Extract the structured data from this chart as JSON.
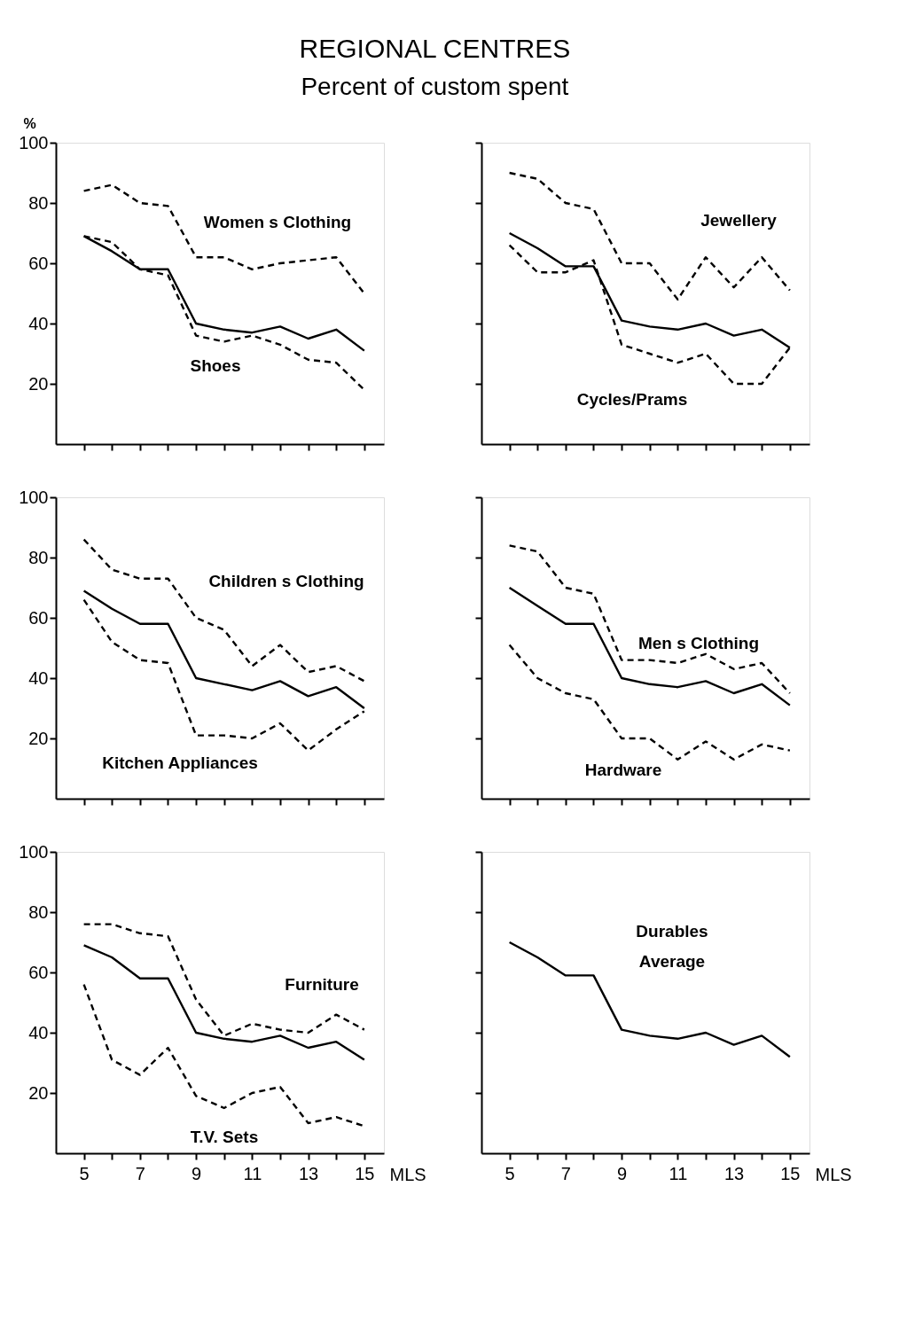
{
  "chart_data": [
    {
      "type": "line",
      "title": "REGIONAL CENTRES",
      "subtitle": "Percent of custom spent",
      "ylabel": "%",
      "x": [
        5,
        6,
        7,
        8,
        9,
        10,
        11,
        12,
        13,
        14,
        15
      ],
      "xlim": [
        4,
        15.7
      ],
      "ylim": [
        0,
        100
      ],
      "yticks": [
        20,
        40,
        60,
        80,
        100
      ],
      "xticks": [
        5,
        {
          "value": 6,
          "label": null
        },
        7,
        {
          "value": 8,
          "label": null
        },
        9,
        {
          "value": 10,
          "label": null
        },
        11,
        {
          "value": 12,
          "label": null
        },
        13,
        {
          "value": 14,
          "label": null
        },
        15
      ],
      "tick_labels": "y",
      "grid": false,
      "series": [
        {
          "name": "Women s Clothing",
          "color": "#000000",
          "line_style": "dashed",
          "values": [
            84,
            86,
            80,
            79,
            62,
            62,
            58,
            60,
            61,
            62,
            50
          ]
        },
        {
          "color": "#000000",
          "line_style": "solid",
          "values": [
            69,
            64,
            58,
            58,
            40,
            38,
            37,
            39,
            35,
            38,
            31
          ]
        },
        {
          "name": "Shoes",
          "color": "#000000",
          "line_style": "dashed",
          "values": [
            69,
            67,
            58,
            56,
            36,
            34,
            36,
            33,
            28,
            27,
            18
          ]
        }
      ]
    },
    {
      "type": "line",
      "x": [
        5,
        6,
        7,
        8,
        9,
        10,
        11,
        12,
        13,
        14,
        15
      ],
      "xlim": [
        4,
        15.7
      ],
      "ylim": [
        0,
        100
      ],
      "yticks": [
        20,
        40,
        60,
        80,
        100
      ],
      "xticks": [
        5,
        {
          "value": 6,
          "label": null
        },
        7,
        {
          "value": 8,
          "label": null
        },
        9,
        {
          "value": 10,
          "label": null
        },
        11,
        {
          "value": 12,
          "label": null
        },
        13,
        {
          "value": 14,
          "label": null
        },
        15
      ],
      "tick_labels": false,
      "grid": false,
      "series": [
        {
          "name": "Jewellery",
          "color": "#000000",
          "line_style": "dashed",
          "values": [
            90,
            88,
            80,
            78,
            60,
            60,
            48,
            62,
            52,
            62,
            51
          ]
        },
        {
          "color": "#000000",
          "line_style": "solid",
          "values": [
            70,
            65,
            59,
            59,
            41,
            39,
            38,
            40,
            36,
            38,
            32
          ]
        },
        {
          "name": "Cycles/Prams",
          "color": "#000000",
          "line_style": "dashed",
          "values": [
            66,
            57,
            57,
            61,
            33,
            30,
            27,
            30,
            20,
            20,
            32
          ]
        }
      ]
    },
    {
      "type": "line",
      "x": [
        5,
        6,
        7,
        8,
        9,
        10,
        11,
        12,
        13,
        14,
        15
      ],
      "xlim": [
        4,
        15.7
      ],
      "ylim": [
        0,
        100
      ],
      "yticks": [
        20,
        40,
        60,
        80,
        100
      ],
      "xticks": [
        5,
        {
          "value": 6,
          "label": null
        },
        7,
        {
          "value": 8,
          "label": null
        },
        9,
        {
          "value": 10,
          "label": null
        },
        11,
        {
          "value": 12,
          "label": null
        },
        13,
        {
          "value": 14,
          "label": null
        },
        15
      ],
      "tick_labels": "y",
      "grid": false,
      "series": [
        {
          "name": "Children s Clothing",
          "color": "#000000",
          "line_style": "dashed",
          "values": [
            86,
            76,
            73,
            73,
            60,
            56,
            44,
            51,
            42,
            44,
            39
          ]
        },
        {
          "color": "#000000",
          "line_style": "solid",
          "values": [
            69,
            63,
            58,
            58,
            40,
            38,
            36,
            39,
            34,
            37,
            30
          ]
        },
        {
          "name": "Kitchen Appliances",
          "color": "#000000",
          "line_style": "dashed",
          "values": [
            66,
            52,
            46,
            45,
            21,
            21,
            20,
            25,
            16,
            23,
            29
          ]
        }
      ]
    },
    {
      "type": "line",
      "x": [
        5,
        6,
        7,
        8,
        9,
        10,
        11,
        12,
        13,
        14,
        15
      ],
      "xlim": [
        4,
        15.7
      ],
      "ylim": [
        0,
        100
      ],
      "yticks": [
        20,
        40,
        60,
        80,
        100
      ],
      "xticks": [
        5,
        {
          "value": 6,
          "label": null
        },
        7,
        {
          "value": 8,
          "label": null
        },
        9,
        {
          "value": 10,
          "label": null
        },
        11,
        {
          "value": 12,
          "label": null
        },
        13,
        {
          "value": 14,
          "label": null
        },
        15
      ],
      "tick_labels": false,
      "grid": false,
      "series": [
        {
          "name": "Men s Clothing",
          "color": "#000000",
          "line_style": "dashed",
          "values": [
            84,
            82,
            70,
            68,
            46,
            46,
            45,
            48,
            43,
            45,
            35
          ]
        },
        {
          "color": "#000000",
          "line_style": "solid",
          "values": [
            70,
            64,
            58,
            58,
            40,
            38,
            37,
            39,
            35,
            38,
            31
          ]
        },
        {
          "name": "Hardware",
          "color": "#000000",
          "line_style": "dashed",
          "values": [
            51,
            40,
            35,
            33,
            20,
            20,
            13,
            19,
            13,
            18,
            16
          ]
        }
      ]
    },
    {
      "type": "line",
      "x": [
        5,
        6,
        7,
        8,
        9,
        10,
        11,
        12,
        13,
        14,
        15
      ],
      "xlim": [
        4,
        15.7
      ],
      "ylim": [
        0,
        100
      ],
      "yticks": [
        20,
        40,
        60,
        80,
        100
      ],
      "xticks": [
        5,
        {
          "value": 6,
          "label": null
        },
        7,
        {
          "value": 8,
          "label": null
        },
        9,
        {
          "value": 10,
          "label": null
        },
        11,
        {
          "value": 12,
          "label": null
        },
        13,
        {
          "value": 14,
          "label": null
        },
        15
      ],
      "xlabel": "MLS",
      "grid": false,
      "series": [
        {
          "name": "Furniture",
          "color": "#000000",
          "line_style": "dashed",
          "values": [
            76,
            76,
            73,
            72,
            51,
            39,
            43,
            41,
            40,
            46,
            41
          ]
        },
        {
          "color": "#000000",
          "line_style": "solid",
          "values": [
            69,
            65,
            58,
            58,
            40,
            38,
            37,
            39,
            35,
            37,
            31
          ]
        },
        {
          "name": "T.V. Sets",
          "color": "#000000",
          "line_style": "dashed",
          "values": [
            56,
            31,
            26,
            35,
            19,
            15,
            20,
            22,
            10,
            12,
            9
          ]
        }
      ]
    },
    {
      "type": "line",
      "x": [
        5,
        6,
        7,
        8,
        9,
        10,
        11,
        12,
        13,
        14,
        15
      ],
      "xlim": [
        4,
        15.7
      ],
      "ylim": [
        0,
        100
      ],
      "yticks": [
        20,
        40,
        60,
        80,
        100
      ],
      "xticks": [
        5,
        {
          "value": 6,
          "label": null
        },
        7,
        {
          "value": 8,
          "label": null
        },
        9,
        {
          "value": 10,
          "label": null
        },
        11,
        {
          "value": 12,
          "label": null
        },
        13,
        {
          "value": 14,
          "label": null
        },
        15
      ],
      "xlabel": "MLS",
      "tick_labels": "x",
      "grid": false,
      "series": [
        {
          "name": "Durables Average",
          "color": "#000000",
          "line_style": "solid",
          "values": [
            70,
            65,
            59,
            59,
            41,
            39,
            38,
            40,
            36,
            39,
            32
          ]
        }
      ]
    }
  ]
}
